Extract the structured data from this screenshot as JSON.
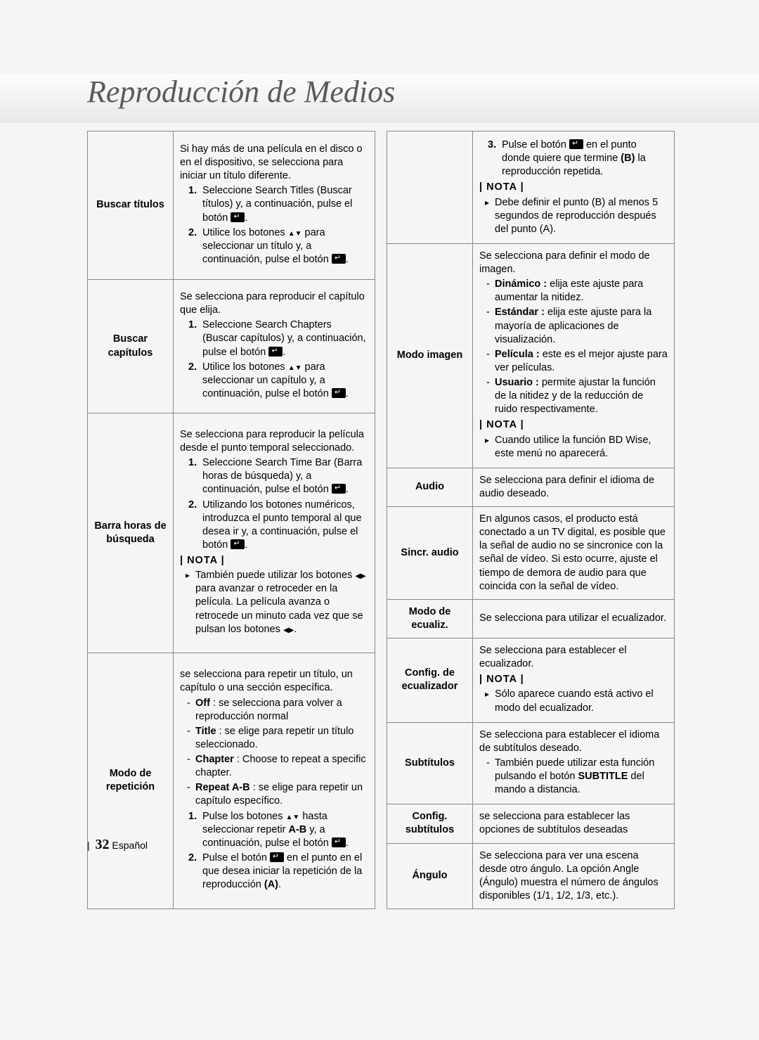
{
  "page": {
    "title": "Reproducción de Medios",
    "number": "32",
    "lang": "Español"
  },
  "left": [
    {
      "label": "Buscar títulos",
      "lines": [
        {
          "t": "p",
          "v": "Si hay más de una película en el disco o en el dispositivo, se selecciona para iniciar un título diferente."
        },
        {
          "t": "ol",
          "n": "1.",
          "v": "Seleccione Search Titles (Buscar títulos) y, a continuación, pulse el botón [E]."
        },
        {
          "t": "ol",
          "n": "2.",
          "v": "Utilice los botones ▲▼ para seleccionar un título y, a continuación, pulse el botón [E]."
        }
      ]
    },
    {
      "label": "Buscar capítulos",
      "lines": [
        {
          "t": "p",
          "v": "Se selecciona para reproducir el capítulo que elija."
        },
        {
          "t": "ol",
          "n": "1.",
          "v": "Seleccione Search Chapters (Buscar capítulos) y, a continuación, pulse el botón [E]."
        },
        {
          "t": "ol",
          "n": "2.",
          "v": "Utilice los botones ▲▼ para seleccionar un capítulo y, a continuación, pulse el botón [E]."
        }
      ]
    },
    {
      "label": "Barra horas de búsqueda",
      "lines": [
        {
          "t": "p",
          "v": "Se selecciona para reproducir la película desde el punto temporal seleccionado."
        },
        {
          "t": "ol",
          "n": "1.",
          "v": "Seleccione Search Time Bar (Barra horas de búsqueda) y, a continuación, pulse el botón [E]."
        },
        {
          "t": "ol",
          "n": "2.",
          "v": "Utilizando los botones numéricos, introduzca el punto temporal al que desea ir y, a continuación, pulse el botón [E]."
        },
        {
          "t": "nota",
          "v": "| NOTA |"
        },
        {
          "t": "note",
          "v": "También puede utilizar los botones ◀▶ para avanzar o retroceder en la película. La película avanza o retrocede un minuto cada vez que se pulsan los botones ◀▶."
        }
      ]
    },
    {
      "label": "Modo de repetición",
      "lines": [
        {
          "t": "p",
          "v": "se selecciona para repetir un título, un capítulo o una sección específica."
        },
        {
          "t": "dash",
          "b": "Off",
          "v": " : se selecciona para volver a reproducción normal"
        },
        {
          "t": "dash",
          "b": "Title",
          "v": " : se elige para repetir un título seleccionado."
        },
        {
          "t": "dash",
          "b": "Chapter",
          "v": " : Choose to repeat a specific chapter."
        },
        {
          "t": "dash",
          "b": "Repeat A-B",
          "v": " : se elige para repetir un capítulo específico."
        },
        {
          "t": "ol",
          "n": "1.",
          "v": "Pulse los botones ▲▼ hasta seleccionar repetir <b>A-B</b> y, a continuación, pulse el botón [E]."
        },
        {
          "t": "ol",
          "n": "2.",
          "v": "Pulse el botón [E] en el punto en el que desea iniciar la repetición de la reproducción <b>(A)</b>."
        }
      ]
    }
  ],
  "right": [
    {
      "label": "",
      "lines": [
        {
          "t": "ol",
          "n": "3.",
          "v": "Pulse el botón [E] en el punto donde quiere que termine <b>(B)</b> la reproducción repetida."
        },
        {
          "t": "nota",
          "v": "| NOTA |"
        },
        {
          "t": "note",
          "v": "Debe definir el punto (B) al menos 5 segundos de reproducción después del punto (A)."
        }
      ]
    },
    {
      "label": "Modo imagen",
      "lines": [
        {
          "t": "p",
          "v": "Se selecciona para definir el modo de imagen."
        },
        {
          "t": "dash",
          "b": "Dinámico :",
          "v": " elija este ajuste para aumentar la nitidez."
        },
        {
          "t": "dash",
          "b": "Estándar :",
          "v": " elija este ajuste para la mayoría de aplicaciones de visualización."
        },
        {
          "t": "dash",
          "b": "Película :",
          "v": " este es el mejor ajuste para ver películas."
        },
        {
          "t": "dash",
          "b": "Usuario :",
          "v": " permite ajustar la función de la nitidez y de la reducción de ruido respectivamente."
        },
        {
          "t": "nota",
          "v": "| NOTA |"
        },
        {
          "t": "note",
          "v": "Cuando utilice la función BD Wise, este menú no aparecerá."
        }
      ]
    },
    {
      "label": "Audio",
      "lines": [
        {
          "t": "p",
          "v": "Se selecciona para definir el idioma de audio deseado."
        }
      ]
    },
    {
      "label": "Sincr. audio",
      "lines": [
        {
          "t": "p",
          "v": "En algunos casos, el producto está conectado a un TV digital, es posible que la señal de audio no se sincronice con la señal de vídeo. Si esto ocurre, ajuste el tiempo de demora de audio para que coincida con la señal de vídeo."
        }
      ]
    },
    {
      "label": "Modo de ecualiz.",
      "lines": [
        {
          "t": "p",
          "v": "Se selecciona para utilizar el ecualizador."
        }
      ]
    },
    {
      "label": "Config. de ecualizador",
      "lines": [
        {
          "t": "p",
          "v": "Se selecciona para establecer el ecualizador."
        },
        {
          "t": "nota",
          "v": "| NOTA |"
        },
        {
          "t": "note",
          "v": "Sólo aparece cuando está activo el modo del ecualizador."
        }
      ]
    },
    {
      "label": "Subtítulos",
      "lines": [
        {
          "t": "p",
          "v": "Se selecciona para establecer el idioma de subtítulos deseado."
        },
        {
          "t": "dash",
          "v": "También puede utilizar esta función pulsando el botón <b>SUBTITLE</b> del mando a distancia."
        }
      ]
    },
    {
      "label": "Config. subtítulos",
      "lines": [
        {
          "t": "p",
          "v": "se selecciona para establecer las opciones de subtítulos deseadas"
        }
      ]
    },
    {
      "label": "Ángulo",
      "lines": [
        {
          "t": "p",
          "v": "Se selecciona para ver una escena desde otro ángulo. La opción Angle (Ángulo) muestra el número de ángulos disponibles (1/1, 1/2, 1/3, etc.)."
        }
      ]
    }
  ]
}
